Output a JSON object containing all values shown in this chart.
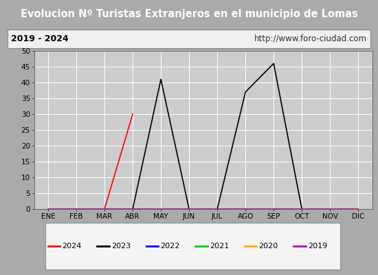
{
  "title": "Evolucion Nº Turistas Extranjeros en el municipio de Lomas",
  "subtitle_left": "2019 - 2024",
  "subtitle_right": "http://www.foro-ciudad.com",
  "title_bg": "#4477cc",
  "title_color": "#ffffff",
  "subtitle_bg": "#f0f0f0",
  "plot_bg": "#cccccc",
  "fig_bg": "#aaaaaa",
  "months": [
    "ENE",
    "FEB",
    "MAR",
    "ABR",
    "MAY",
    "JUN",
    "JUL",
    "AGO",
    "SEP",
    "OCT",
    "NOV",
    "DIC"
  ],
  "ylim": [
    0,
    50
  ],
  "yticks": [
    0,
    5,
    10,
    15,
    20,
    25,
    30,
    35,
    40,
    45,
    50
  ],
  "series": {
    "2024": {
      "color": "#ff0000",
      "data": [
        null,
        null,
        0,
        30,
        null,
        null,
        null,
        null,
        null,
        null,
        null,
        null
      ]
    },
    "2023": {
      "color": "#000000",
      "data": [
        0,
        0,
        0,
        0,
        41,
        0,
        0,
        37,
        46,
        0,
        0,
        0
      ]
    },
    "2022": {
      "color": "#0000ff",
      "data": [
        0,
        0,
        0,
        0,
        0,
        0,
        0,
        0,
        0,
        0,
        0,
        0
      ]
    },
    "2021": {
      "color": "#00cc00",
      "data": [
        0,
        0,
        0,
        0,
        0,
        0,
        0,
        0,
        0,
        0,
        0,
        0
      ]
    },
    "2020": {
      "color": "#ffaa00",
      "data": [
        0,
        0,
        0,
        0,
        0,
        0,
        0,
        0,
        0,
        0,
        0,
        0
      ]
    },
    "2019": {
      "color": "#bb00bb",
      "data": [
        0,
        0,
        0,
        0,
        0,
        0,
        0,
        0,
        0,
        0,
        0,
        0
      ]
    }
  },
  "legend_order": [
    "2024",
    "2023",
    "2022",
    "2021",
    "2020",
    "2019"
  ],
  "title_fontsize": 10.5,
  "subtitle_fontsize": 9,
  "tick_fontsize": 7.5,
  "legend_fontsize": 8
}
